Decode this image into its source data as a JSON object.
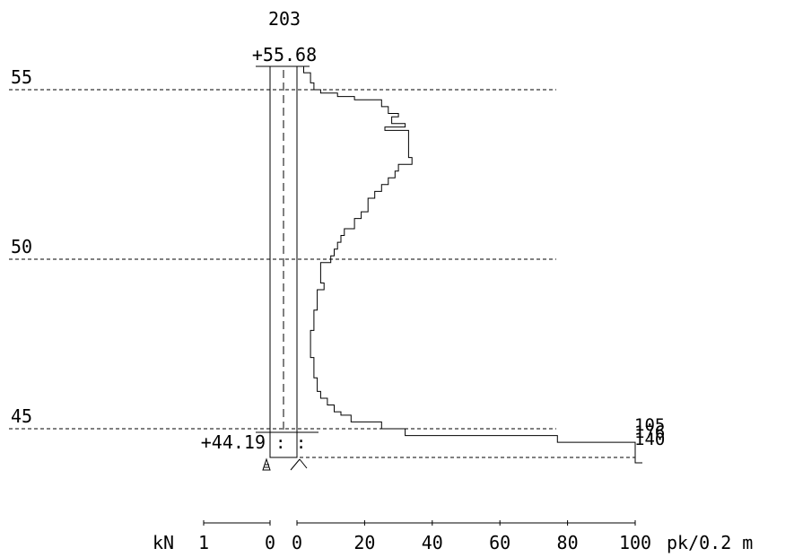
{
  "chart_data": {
    "type": "line",
    "title": "203",
    "top_level_label": "+55.68",
    "bottom_level_label": "+44.19",
    "top_level": 55.68,
    "bottom_level": 44.19,
    "depth_ticks": [
      {
        "value": 55,
        "label": "55"
      },
      {
        "value": 50,
        "label": "50"
      },
      {
        "value": 45,
        "label": "45"
      }
    ],
    "axis_left": {
      "unit": "kN",
      "ticks": [
        {
          "value": 1,
          "label": "1"
        },
        {
          "value": 0,
          "label": "0"
        }
      ]
    },
    "axis_right": {
      "unit": "pk/0.2 m",
      "ticks": [
        {
          "value": 0,
          "label": "0"
        },
        {
          "value": 20,
          "label": "20"
        },
        {
          "value": 40,
          "label": "40"
        },
        {
          "value": 60,
          "label": "60"
        },
        {
          "value": 80,
          "label": "80"
        },
        {
          "value": 100,
          "label": "100"
        }
      ]
    },
    "end_labels": [
      "105",
      "176",
      "140"
    ],
    "series": [
      {
        "values": [
          [
            55.68,
            2
          ],
          [
            55.52,
            2
          ],
          [
            55.5,
            4
          ],
          [
            55.3,
            4
          ],
          [
            55.2,
            5
          ],
          [
            55.1,
            5
          ],
          [
            55.0,
            7
          ],
          [
            54.9,
            12
          ],
          [
            54.8,
            17
          ],
          [
            54.7,
            25
          ],
          [
            54.5,
            27
          ],
          [
            54.3,
            30
          ],
          [
            54.2,
            28
          ],
          [
            54.0,
            32
          ],
          [
            53.9,
            26
          ],
          [
            53.8,
            33
          ],
          [
            53.0,
            34
          ],
          [
            52.8,
            30
          ],
          [
            52.6,
            29
          ],
          [
            52.4,
            27
          ],
          [
            52.2,
            25
          ],
          [
            52.0,
            23
          ],
          [
            51.8,
            21
          ],
          [
            51.4,
            19
          ],
          [
            51.2,
            17
          ],
          [
            50.9,
            14
          ],
          [
            50.7,
            13
          ],
          [
            50.5,
            12
          ],
          [
            50.3,
            11
          ],
          [
            50.1,
            10
          ],
          [
            49.9,
            7
          ],
          [
            49.3,
            8
          ],
          [
            49.1,
            6
          ],
          [
            48.5,
            5
          ],
          [
            48.1,
            5
          ],
          [
            47.9,
            4
          ],
          [
            47.5,
            4
          ],
          [
            47.3,
            4
          ],
          [
            47.1,
            5
          ],
          [
            46.7,
            5
          ],
          [
            46.5,
            6
          ],
          [
            46.3,
            6
          ],
          [
            46.1,
            7
          ],
          [
            45.9,
            9
          ],
          [
            45.7,
            11
          ],
          [
            45.5,
            13
          ],
          [
            45.4,
            16
          ],
          [
            45.2,
            25
          ],
          [
            45.0,
            32
          ],
          [
            44.8,
            77
          ],
          [
            44.6,
            100
          ]
        ]
      }
    ]
  }
}
